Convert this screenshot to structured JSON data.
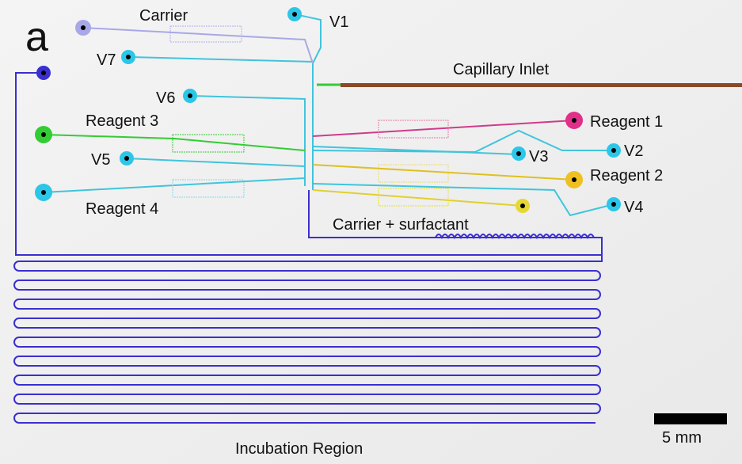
{
  "panel_label": "a",
  "labels": {
    "carrier": "Carrier",
    "v1": "V1",
    "v7": "V7",
    "capillary_inlet": "Capillary Inlet",
    "v6": "V6",
    "reagent_3": "Reagent 3",
    "reagent_1": "Reagent 1",
    "v5": "V5",
    "v3": "V3",
    "v2": "V2",
    "reagent_2": "Reagent 2",
    "reagent_4": "Reagent 4",
    "v4": "V4",
    "carrier_surfactant": "Carrier + surfactant",
    "incubation_region": "Incubation Region"
  },
  "scale_bar": {
    "label": "5 mm"
  }
}
